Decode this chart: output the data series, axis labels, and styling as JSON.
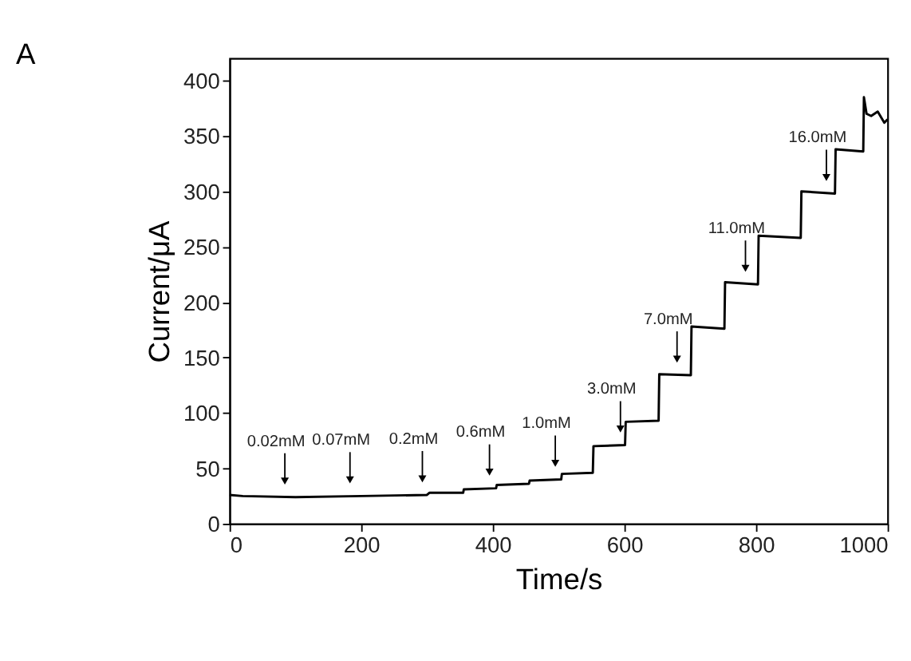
{
  "chart_data": {
    "type": "line",
    "title": "A",
    "xlabel": "Time/s",
    "ylabel": "Current/μA",
    "xlim": [
      0,
      1000
    ],
    "xticks": [
      0,
      200,
      400,
      600,
      800,
      {
        "value": 1000,
        "label": "1000"
      }
    ],
    "ylim": [
      0,
      420
    ],
    "yticks": [
      0,
      50,
      100,
      150,
      200,
      250,
      300,
      350,
      400
    ],
    "grid": false,
    "series": [
      {
        "color": "#000000",
        "line_style": "solid",
        "x": [
          0,
          20,
          100,
          200,
          300,
          304,
          355,
          356,
          405,
          406,
          455,
          456,
          504,
          505,
          552,
          553,
          601,
          602,
          652,
          653,
          701,
          702,
          752,
          753,
          803,
          804,
          868,
          869,
          920,
          921,
          963,
          964,
          968,
          975,
          985,
          995,
          1000
        ],
        "values": [
          26,
          25,
          24,
          25,
          26,
          28,
          28,
          31,
          32,
          35,
          36,
          39,
          40,
          45,
          46,
          70,
          71,
          92,
          93,
          135,
          134,
          178,
          176,
          218,
          216,
          260,
          258,
          300,
          298,
          338,
          336,
          385,
          370,
          368,
          372,
          362,
          365
        ]
      }
    ],
    "annotations": [
      {
        "text": "0.02mM",
        "x": 84,
        "y": 24
      },
      {
        "text": "0.07mM",
        "x": 183,
        "y": 25
      },
      {
        "text": "0.2mM",
        "x": 293,
        "y": 26
      },
      {
        "text": "0.6mM",
        "x": 395,
        "y": 32
      },
      {
        "text": "1.0mM",
        "x": 495,
        "y": 40
      },
      {
        "text": "3.0mM",
        "x": 594,
        "y": 71
      },
      {
        "text": "7.0mM",
        "x": 680,
        "y": 134
      },
      {
        "text": "11.0mM",
        "x": 784,
        "y": 216
      },
      {
        "text": "16.0mM",
        "x": 907,
        "y": 298
      }
    ]
  }
}
